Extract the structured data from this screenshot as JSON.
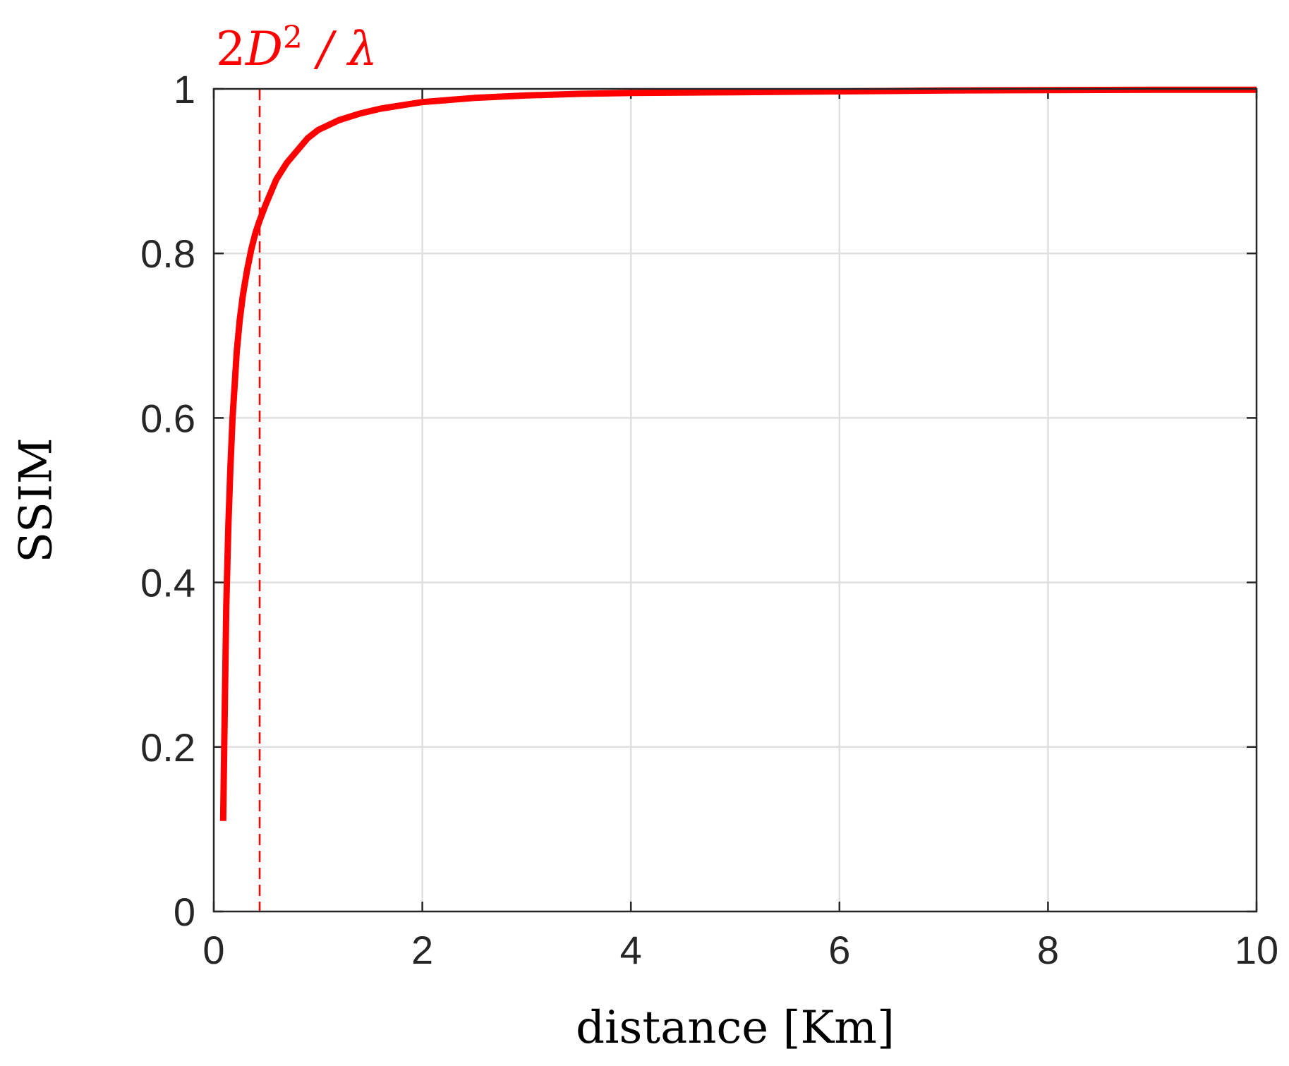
{
  "chart_data": {
    "type": "line",
    "title": "",
    "xlabel": "distance [Km]",
    "ylabel": "SSIM",
    "xlim": [
      0,
      10
    ],
    "ylim": [
      0,
      1
    ],
    "xticks": [
      0,
      2,
      4,
      6,
      8,
      10
    ],
    "yticks": [
      0,
      0.2,
      0.4,
      0.6,
      0.8,
      1
    ],
    "xtick_labels": [
      "0",
      "2",
      "4",
      "6",
      "8",
      "10"
    ],
    "ytick_labels": [
      "0",
      "0.2",
      "0.4",
      "0.6",
      "0.8",
      "1"
    ],
    "grid": true,
    "series": [
      {
        "color": "#ff0000",
        "x": [
          0.09,
          0.1,
          0.12,
          0.14,
          0.16,
          0.18,
          0.2,
          0.22,
          0.25,
          0.28,
          0.32,
          0.36,
          0.4,
          0.44,
          0.5,
          0.55,
          0.6,
          0.7,
          0.8,
          0.9,
          1.0,
          1.2,
          1.4,
          1.6,
          1.8,
          2.0,
          2.5,
          3.0,
          3.5,
          4.0,
          5.0,
          6.0,
          7.0,
          8.0,
          9.0,
          10.0
        ],
        "y": [
          0.11,
          0.2,
          0.37,
          0.47,
          0.54,
          0.6,
          0.64,
          0.68,
          0.72,
          0.75,
          0.78,
          0.805,
          0.825,
          0.84,
          0.86,
          0.875,
          0.89,
          0.91,
          0.925,
          0.94,
          0.95,
          0.962,
          0.97,
          0.976,
          0.98,
          0.984,
          0.989,
          0.992,
          0.994,
          0.995,
          0.996,
          0.997,
          0.998,
          0.9985,
          0.999,
          0.999
        ]
      }
    ],
    "annotations": [
      {
        "type": "vertical-dashed-line",
        "x": 0.44,
        "color": "#ff0000",
        "label_text": "2D",
        "label_superscript": "2",
        "label_tail": "/ λ"
      }
    ]
  }
}
